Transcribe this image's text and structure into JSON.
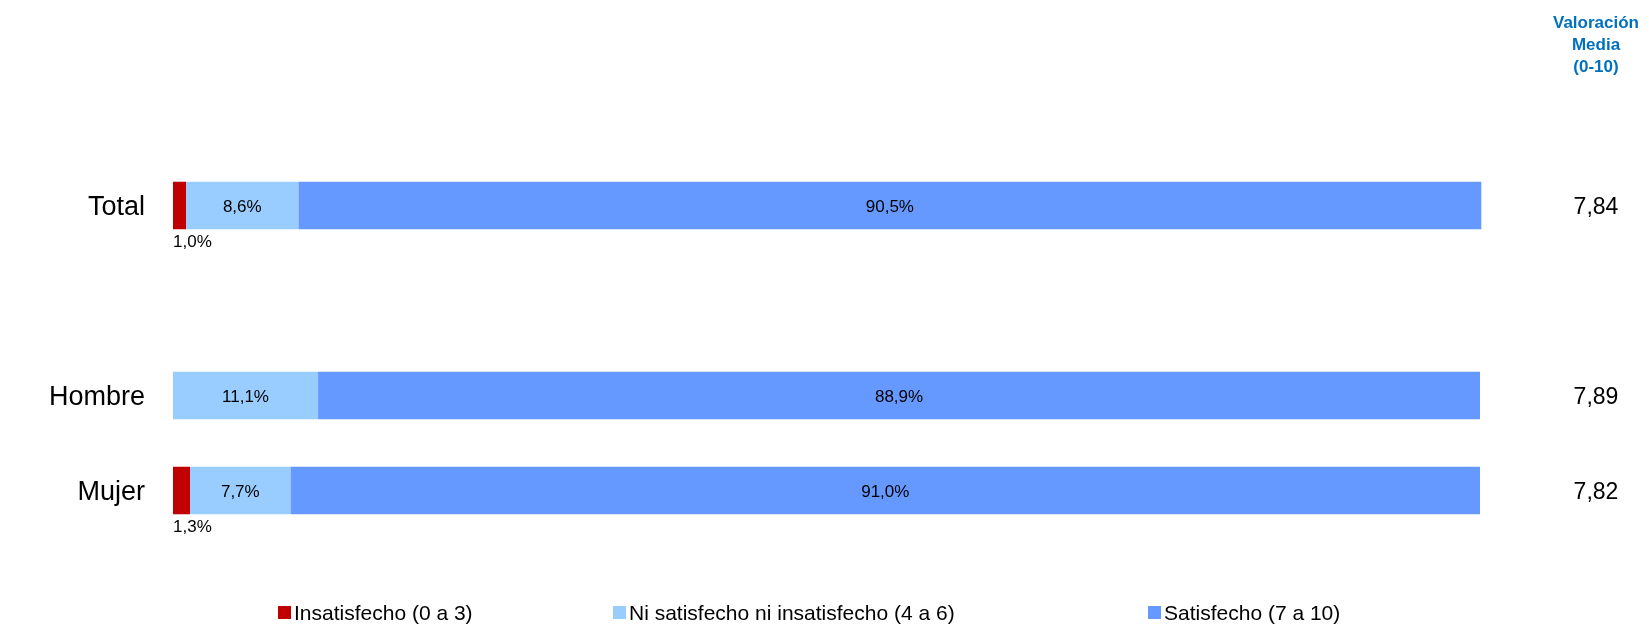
{
  "chart_data": {
    "type": "bar",
    "orientation": "horizontal",
    "stacked": true,
    "categories": [
      "Total",
      null,
      "Hombre",
      "Mujer"
    ],
    "series": [
      {
        "name": "Insatisfecho (0 a 3)",
        "color": "#c00000",
        "values": [
          1.0,
          null,
          0,
          1.3
        ],
        "value_labels": [
          "1,0%",
          null,
          null,
          "1,3%"
        ]
      },
      {
        "name": "Ni satisfecho ni insatisfecho (4 a 6)",
        "color": "#99ccff",
        "values": [
          8.6,
          null,
          11.1,
          7.7
        ],
        "value_labels": [
          "8,6%",
          null,
          "11,1%",
          "7,7%"
        ]
      },
      {
        "name": "Satisfecho (7 a 10)",
        "color": "#6699ff",
        "values": [
          90.5,
          null,
          88.9,
          91.0
        ],
        "value_labels": [
          "90,5%",
          null,
          "88,9%",
          "91,0%"
        ]
      }
    ],
    "xlim": [
      0,
      100
    ],
    "tick_labels": "y",
    "legend": "bottom",
    "annotations": [
      "Valoración Media (0-10)",
      "7,84",
      "7,89",
      "7,82"
    ]
  }
}
